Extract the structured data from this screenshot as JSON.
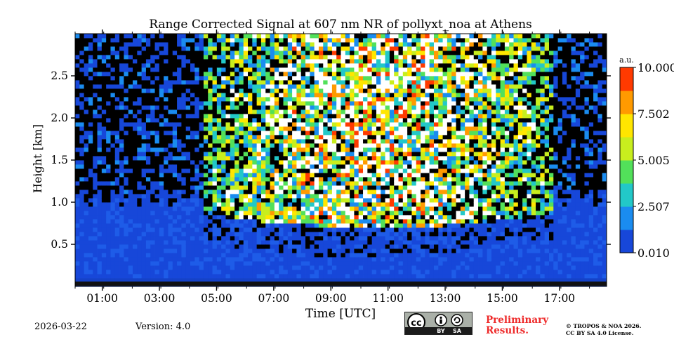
{
  "chart_data": {
    "type": "heatmap",
    "title": "Range Corrected Signal at 607 nm NR of pollyxt_noa at Athens",
    "xlabel": "Time [UTC]",
    "ylabel": "Height [km]",
    "x_ticks": [
      "01:00",
      "03:00",
      "05:00",
      "07:00",
      "09:00",
      "11:00",
      "13:00",
      "15:00",
      "17:00"
    ],
    "x_tick_values_hours": [
      1,
      3,
      5,
      7,
      9,
      11,
      13,
      15,
      17
    ],
    "xlim_hours": [
      0.05,
      18.65
    ],
    "y_ticks": [
      "0.5",
      "1.0",
      "1.5",
      "2.0",
      "2.5"
    ],
    "y_tick_values_km": [
      0.5,
      1.0,
      1.5,
      2.0,
      2.5
    ],
    "ylim_km": [
      0.0,
      3.0
    ],
    "colorbar": {
      "label": "a.u.",
      "ticks": [
        "0.010",
        "2.507",
        "5.005",
        "7.502",
        "10.000"
      ],
      "tick_values": [
        0.01,
        2.507,
        5.005,
        7.502,
        10.0
      ],
      "range": [
        0.01,
        10.0
      ],
      "colormap": [
        "#1747d9",
        "#1a8cf0",
        "#22c8c8",
        "#52e05a",
        "#c8ee1e",
        "#ffe600",
        "#ff9a00",
        "#ff3a00"
      ]
    },
    "regions": [
      {
        "hours": [
          0.05,
          4.5
        ],
        "boundary_layer_top_km": 1.1,
        "above": "noise-low"
      },
      {
        "hours": [
          4.5,
          16.8
        ],
        "boundary_layer_top_km": 0.9,
        "above": "noise-high"
      },
      {
        "hours": [
          16.8,
          18.65
        ],
        "boundary_layer_top_km": 1.1,
        "above": "noise-low"
      }
    ]
  },
  "footer": {
    "date": "2026-03-22",
    "version": "Version: 4.0",
    "preliminary": [
      "Preliminary",
      "Results."
    ],
    "copyright": [
      "© TROPOS & NOA 2026.",
      "CC BY SA 4.0 License."
    ],
    "license_badge": [
      "cc",
      "BY",
      "SA"
    ]
  }
}
